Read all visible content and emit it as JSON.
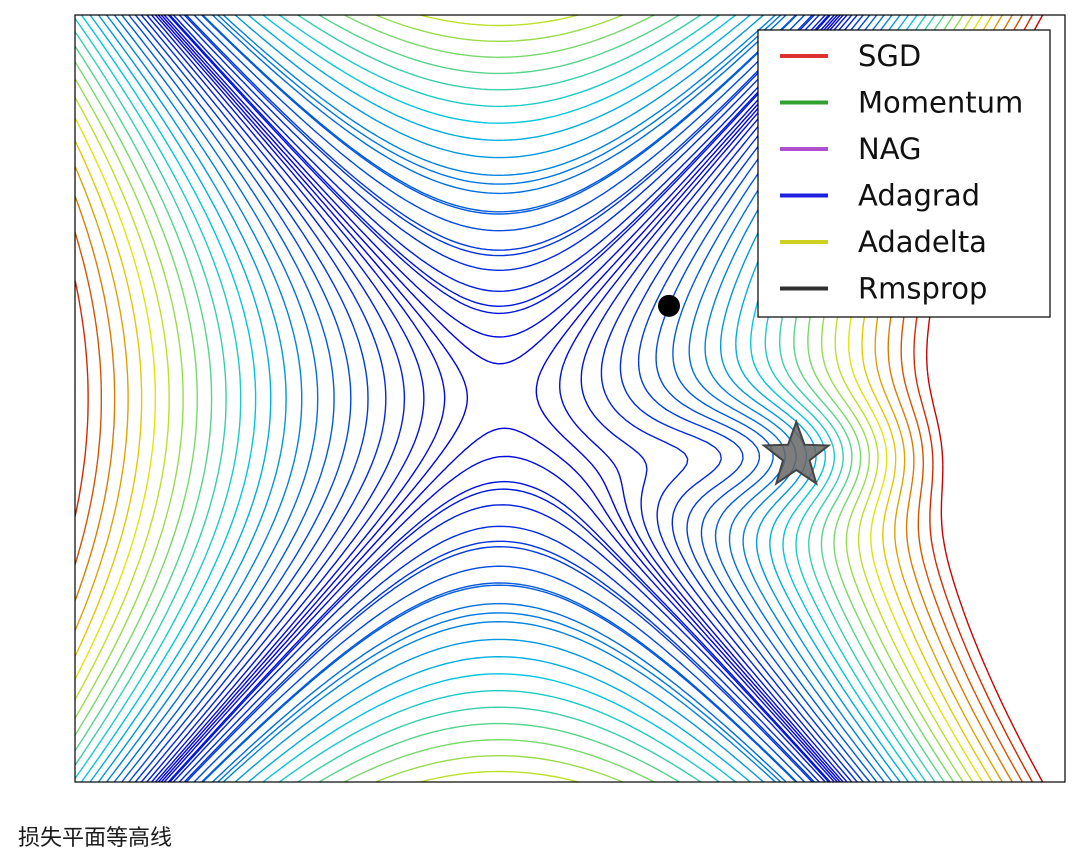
{
  "caption": "损失平面等高线",
  "chart_data": {
    "type": "contour",
    "title": "",
    "xlabel": "",
    "ylabel": "",
    "surface": "saddle",
    "colormap": [
      "#0000dd",
      "#00c8e0",
      "#e6e600",
      "#cc0000"
    ],
    "grid": false,
    "legend_position": "top-right",
    "series": [
      {
        "name": "SGD",
        "color": "#e03030"
      },
      {
        "name": "Momentum",
        "color": "#30a030"
      },
      {
        "name": "NAG",
        "color": "#b050d0"
      },
      {
        "name": "Adagrad",
        "color": "#2020e0"
      },
      {
        "name": "Adadelta",
        "color": "#d0d020"
      },
      {
        "name": "Rmsprop",
        "color": "#303030"
      }
    ],
    "markers": [
      {
        "kind": "start-point",
        "shape": "circle",
        "color": "#000000"
      },
      {
        "kind": "goal",
        "shape": "star",
        "color": "#666666"
      }
    ]
  }
}
